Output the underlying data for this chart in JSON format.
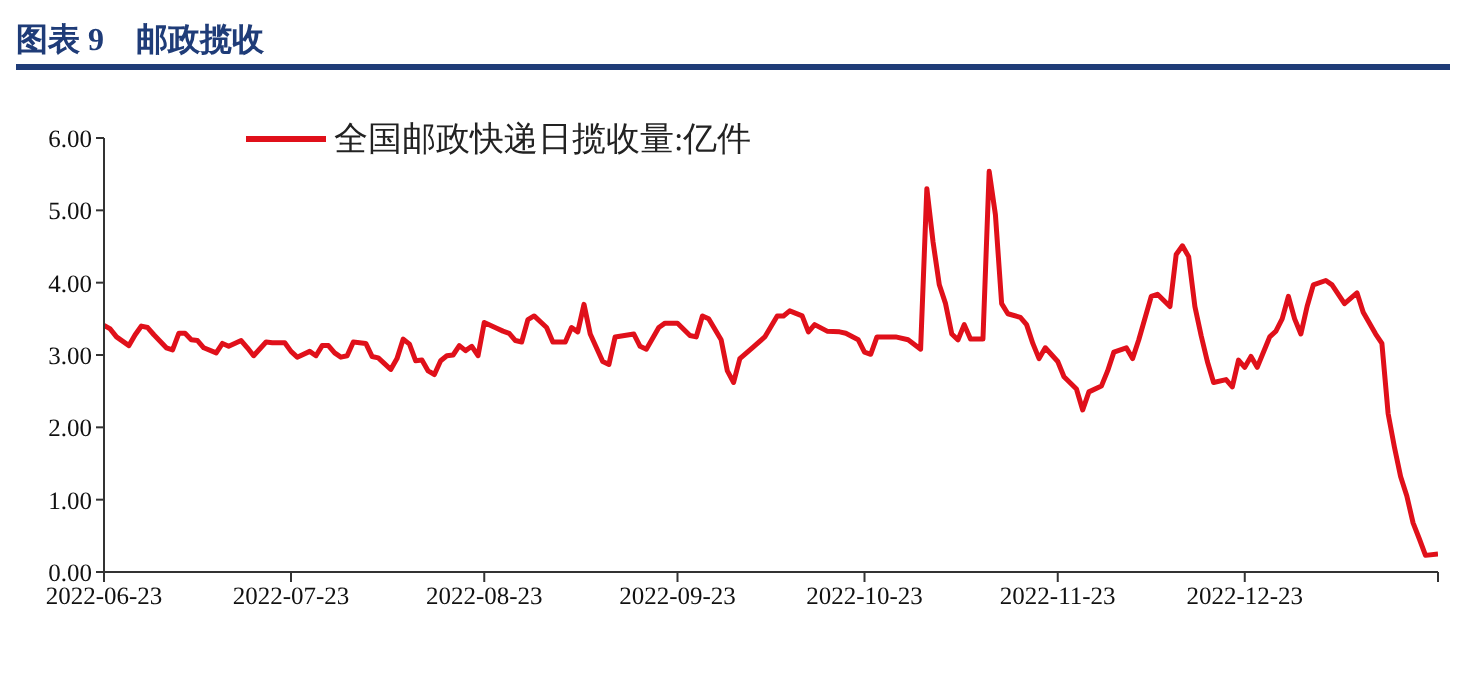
{
  "chart_data": {
    "type": "line",
    "title": "图表 9　邮政揽收",
    "x": [
      "2022-06-23",
      "2022-06-24",
      "2022-06-25",
      "2022-06-27",
      "2022-06-28",
      "2022-06-29",
      "2022-06-30",
      "2022-07-01",
      "2022-07-03",
      "2022-07-04",
      "2022-07-05",
      "2022-07-06",
      "2022-07-07",
      "2022-07-08",
      "2022-07-09",
      "2022-07-11",
      "2022-07-12",
      "2022-07-13",
      "2022-07-15",
      "2022-07-16",
      "2022-07-17",
      "2022-07-19",
      "2022-07-20",
      "2022-07-22",
      "2022-07-23",
      "2022-07-24",
      "2022-07-26",
      "2022-07-27",
      "2022-07-28",
      "2022-07-29",
      "2022-07-30",
      "2022-07-31",
      "2022-08-01",
      "2022-08-02",
      "2022-08-04",
      "2022-08-05",
      "2022-08-06",
      "2022-08-07",
      "2022-08-08",
      "2022-08-09",
      "2022-08-10",
      "2022-08-11",
      "2022-08-12",
      "2022-08-13",
      "2022-08-14",
      "2022-08-15",
      "2022-08-16",
      "2022-08-17",
      "2022-08-18",
      "2022-08-19",
      "2022-08-20",
      "2022-08-21",
      "2022-08-22",
      "2022-08-23",
      "2022-08-25",
      "2022-08-26",
      "2022-08-27",
      "2022-08-28",
      "2022-08-29",
      "2022-08-30",
      "2022-08-31",
      "2022-09-02",
      "2022-09-03",
      "2022-09-05",
      "2022-09-06",
      "2022-09-07",
      "2022-09-08",
      "2022-09-09",
      "2022-09-11",
      "2022-09-12",
      "2022-09-13",
      "2022-09-16",
      "2022-09-17",
      "2022-09-18",
      "2022-09-20",
      "2022-09-21",
      "2022-09-23",
      "2022-09-25",
      "2022-09-26",
      "2022-09-27",
      "2022-09-28",
      "2022-09-30",
      "2022-10-01",
      "2022-10-02",
      "2022-10-03",
      "2022-10-05",
      "2022-10-07",
      "2022-10-09",
      "2022-10-10",
      "2022-10-11",
      "2022-10-13",
      "2022-10-14",
      "2022-10-15",
      "2022-10-17",
      "2022-10-19",
      "2022-10-20",
      "2022-10-22",
      "2022-10-23",
      "2022-10-24",
      "2022-10-25",
      "2022-10-28",
      "2022-10-30",
      "2022-11-01",
      "2022-11-02",
      "2022-11-03",
      "2022-11-04",
      "2022-11-05",
      "2022-11-06",
      "2022-11-07",
      "2022-11-08",
      "2022-11-09",
      "2022-11-11",
      "2022-11-12",
      "2022-11-13",
      "2022-11-14",
      "2022-11-15",
      "2022-11-17",
      "2022-11-18",
      "2022-11-19",
      "2022-11-20",
      "2022-11-21",
      "2022-11-23",
      "2022-11-24",
      "2022-11-26",
      "2022-11-27",
      "2022-11-28",
      "2022-11-30",
      "2022-12-01",
      "2022-12-02",
      "2022-12-04",
      "2022-12-05",
      "2022-12-06",
      "2022-12-08",
      "2022-12-09",
      "2022-12-11",
      "2022-12-12",
      "2022-12-13",
      "2022-12-14",
      "2022-12-15",
      "2022-12-16",
      "2022-12-17",
      "2022-12-18",
      "2022-12-20",
      "2022-12-21",
      "2022-12-22",
      "2022-12-23",
      "2022-12-24",
      "2022-12-25",
      "2022-12-27",
      "2022-12-28",
      "2022-12-29",
      "2022-12-30",
      "2022-12-31",
      "2023-01-01",
      "2023-01-02",
      "2023-01-03",
      "2023-01-05",
      "2023-01-06",
      "2023-01-08",
      "2023-01-10",
      "2023-01-11",
      "2023-01-13",
      "2023-01-14",
      "2023-01-15",
      "2023-01-16",
      "2023-01-17",
      "2023-01-18",
      "2023-01-19",
      "2023-01-20",
      "2023-01-21",
      "2023-01-23"
    ],
    "series": [
      {
        "name": "全国邮政快递日揽收量:亿件",
        "color": "#e0101a",
        "values": [
          3.41,
          3.36,
          3.25,
          3.13,
          3.28,
          3.4,
          3.38,
          3.28,
          3.1,
          3.07,
          3.3,
          3.3,
          3.21,
          3.2,
          3.1,
          3.03,
          3.16,
          3.12,
          3.2,
          3.1,
          2.99,
          3.18,
          3.17,
          3.17,
          3.05,
          2.97,
          3.05,
          2.99,
          3.13,
          3.13,
          3.03,
          2.97,
          2.99,
          3.18,
          3.16,
          2.98,
          2.96,
          2.88,
          2.8,
          2.95,
          3.22,
          3.15,
          2.92,
          2.93,
          2.78,
          2.73,
          2.92,
          2.99,
          3.0,
          3.13,
          3.06,
          3.12,
          2.99,
          3.45,
          3.37,
          3.33,
          3.3,
          3.2,
          3.18,
          3.49,
          3.54,
          3.38,
          3.18,
          3.18,
          3.38,
          3.32,
          3.7,
          3.29,
          2.91,
          2.87,
          3.25,
          3.29,
          3.12,
          3.08,
          3.38,
          3.44,
          3.44,
          3.27,
          3.25,
          3.54,
          3.5,
          3.21,
          2.78,
          2.62,
          2.95,
          3.1,
          3.25,
          3.54,
          3.54,
          3.61,
          3.54,
          3.32,
          3.42,
          3.33,
          3.32,
          3.3,
          3.21,
          3.04,
          3.01,
          3.25,
          3.25,
          3.21,
          3.08,
          5.3,
          4.56,
          3.97,
          3.71,
          3.29,
          3.21,
          3.42,
          3.22,
          3.22,
          5.54,
          4.94,
          3.71,
          3.57,
          3.52,
          3.42,
          3.16,
          2.95,
          3.1,
          2.91,
          2.7,
          2.53,
          2.24,
          2.49,
          2.57,
          2.78,
          3.04,
          3.1,
          2.95,
          3.21,
          3.81,
          3.84,
          3.67,
          4.39,
          4.51,
          4.36,
          3.67,
          3.27,
          2.91,
          2.62,
          2.66,
          2.56,
          2.93,
          2.83,
          2.98,
          2.83,
          3.25,
          3.33,
          3.5,
          3.81,
          3.5,
          3.29,
          3.67,
          3.97,
          4.03,
          3.97,
          3.71,
          3.86,
          3.59,
          3.29,
          3.16,
          2.19,
          1.73,
          1.32,
          1.05,
          0.68,
          0.46,
          0.23,
          0.25
        ]
      }
    ],
    "xlim": [
      "2022-06-23",
      "2023-01-23"
    ],
    "xticks": [
      "2022-06-23",
      "2022-07-23",
      "2022-08-23",
      "2022-09-23",
      "2022-10-23",
      "2022-11-23",
      "2022-12-23",
      {
        "value": "2023-01-23",
        "label": null
      }
    ],
    "ylim": [
      0,
      6
    ],
    "yticks": [
      {
        "value": 0,
        "label": "0.00"
      },
      {
        "value": 1,
        "label": "1.00"
      },
      {
        "value": 2,
        "label": "2.00"
      },
      {
        "value": 3,
        "label": "3.00"
      },
      {
        "value": 4,
        "label": "4.00"
      },
      {
        "value": 5,
        "label": "5.00"
      },
      {
        "value": 6,
        "label": "6.00"
      }
    ],
    "legend": "top left",
    "marker": "none",
    "line_style": "solid"
  }
}
